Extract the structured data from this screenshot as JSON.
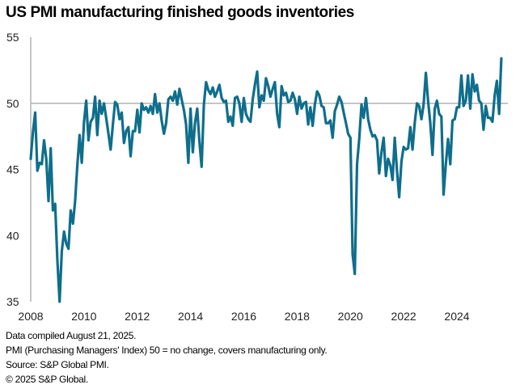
{
  "chart_data": {
    "type": "line",
    "title": "US PMI manufacturing finished goods inventories",
    "xlabel": "",
    "ylabel": "",
    "ylim": [
      35,
      55
    ],
    "xlim": [
      "2008-01",
      "2025-07"
    ],
    "yticks": [
      35,
      40,
      45,
      50,
      55
    ],
    "xticks": [
      "2008",
      "2010",
      "2012",
      "2014",
      "2016",
      "2018",
      "2020",
      "2022",
      "2024"
    ],
    "reference_line": {
      "value": 50,
      "color": "#b3b3b3"
    },
    "grid": false,
    "legend": "none",
    "series": [
      {
        "name": "US PMI manufacturing finished goods inventories",
        "color": "#0f6e8c",
        "start": "2008-01",
        "frequency": "monthly",
        "values": [
          45.8,
          47.8,
          49.3,
          44.9,
          45.5,
          45.4,
          47.2,
          45.8,
          42.6,
          46.6,
          41.9,
          42.4,
          38.2,
          35.0,
          38.8,
          40.3,
          39.4,
          39.0,
          41.9,
          40.9,
          42.6,
          45.3,
          47.6,
          45.5,
          48.6,
          50.2,
          47.2,
          48.6,
          48.9,
          50.5,
          47.6,
          50.2,
          49.2,
          50.0,
          48.9,
          47.7,
          46.5,
          48.4,
          50.1,
          49.9,
          48.8,
          49.3,
          47.0,
          47.9,
          48.2,
          46.0,
          47.9,
          47.9,
          49.5,
          47.8,
          50.0,
          49.5,
          49.7,
          49.3,
          49.8,
          49.2,
          50.7,
          49.3,
          50.0,
          48.7,
          47.7,
          48.5,
          50.3,
          50.5,
          50.2,
          50.9,
          49.9,
          51.1,
          50.3,
          49.5,
          48.4,
          45.5,
          49.6,
          46.3,
          48.5,
          49.6,
          47.1,
          45.2,
          49.9,
          51.6,
          51.0,
          50.7,
          51.2,
          50.5,
          50.9,
          51.4,
          50.4,
          50.1,
          50.2,
          48.6,
          49.0,
          48.3,
          50.4,
          50.5,
          50.0,
          48.6,
          50.4,
          49.2,
          48.8,
          48.6,
          50.3,
          51.4,
          52.4,
          49.7,
          50.6,
          50.2,
          51.9,
          51.3,
          50.5,
          51.1,
          51.6,
          49.2,
          48.2,
          51.3,
          50.6,
          50.8,
          50.1,
          50.2,
          50.8,
          50.3,
          49.2,
          50.5,
          49.6,
          50.0,
          50.1,
          48.4,
          49.7,
          48.3,
          49.9,
          50.9,
          50.6,
          49.8,
          49.7,
          48.5,
          48.5,
          48.7,
          47.4,
          49.4,
          49.9,
          50.5,
          50.1,
          49.3,
          48.5,
          47.7,
          47.4,
          38.6,
          37.1,
          45.4,
          47.3,
          49.9,
          48.9,
          50.4,
          48.8,
          48.0,
          47.5,
          47.6,
          47.2,
          44.7,
          46.3,
          47.4,
          44.5,
          45.8,
          45.3,
          44.2,
          47.4,
          44.9,
          42.9,
          45.6,
          46.7,
          46.5,
          46.6,
          48.2,
          46.5,
          48.5,
          50.0,
          49.8,
          48.8,
          49.9,
          52.3,
          50.2,
          48.5,
          46.1,
          49.6,
          50.2,
          49.2,
          49.0,
          43.1,
          45.4,
          47.3,
          45.4,
          48.7,
          48.8,
          49.7,
          49.7,
          52.1,
          49.8,
          50.2,
          52.1,
          49.6,
          52.2,
          50.9,
          51.4,
          50.2,
          50.0,
          48.0,
          49.8,
          48.9,
          48.9,
          48.6,
          50.6,
          51.7,
          49.2,
          53.4
        ]
      }
    ]
  },
  "footnotes": [
    "Data compiled August 21, 2025.",
    "PMI (Purchasing Managers' Index) 50 =  no change, covers manufacturing only.",
    "Source: S&P Global PMI.",
    "© 2025 S&P Global."
  ]
}
